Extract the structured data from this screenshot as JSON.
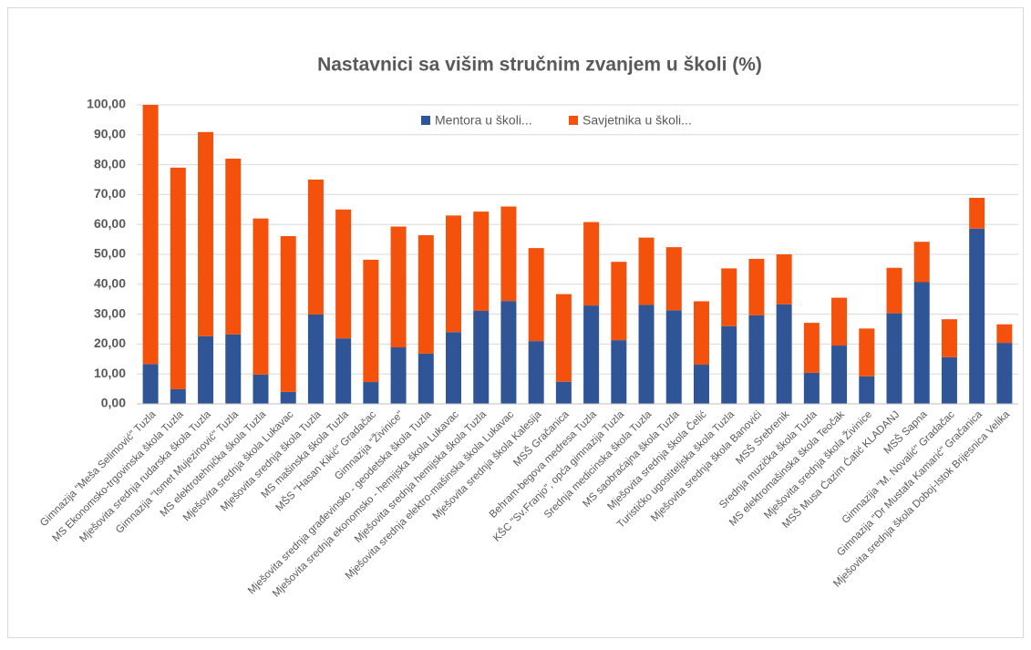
{
  "chart_data": {
    "type": "stacked_bar",
    "title": "Nastavnici sa višim stručnim zvanjem u školi (%)",
    "categories": [
      "Gimnazija \"Meša Selimović\" Tuzla",
      "MS Ekonomsko-trgovinska škola Tuzla",
      "Mješovita srednja rudarska škola Tuzla",
      "Gimnazija \"Ismet Mujezinović\" Tuzla",
      "MS elektrotehnička škola Tuzla",
      "Mješovita srednja škola Lukavac",
      "Mješovita srednja škola Tuzla",
      "MS mašinska škola Tuzla",
      "MŠS \"Hasan Kikić\" Gradačac",
      "Gimnazija \"Živinice\"",
      "Mješovita srednja građevinsko - geodetska škola Tuzla",
      "Mješovita srednja ekonomsko - hemijska škola Lukavac",
      "Mješovita srednja hemijska škola Tuzla",
      "Mješovita srednja elektro-mašinska škola Lukavac",
      "Mješovita srednja škola Kalesija",
      "MSŠ Gračanica",
      "Behram-begova medresa Tuzla",
      "KŠC \"Sv.Franjo\", opća gimnazija Tuzla",
      "Srednja medicinska škola Tuzla",
      "MS saobraćajna škola Tuzla",
      "Mješovita srednja škola Čelić",
      "Turističko ugostiteljska škola Tuzla",
      "Mješovita srednja škola Banovići",
      "MSŠ Srebrenik",
      "Srednja muzička škola Tuzla",
      "MS elektromašinska škola Teočak",
      "Mješovita srednja škola Živinice",
      "MSŠ Musa Ćazim Ćatić KLADANJ",
      "MSŠ Sapna",
      "Gimnazija \"M. Novalić\" Gradačac",
      "Gimnazija \"Dr Mustafa Kamarić\" Gračanica",
      "Mješovita srednja škola Doboj-Istok Brijesnica Velika"
    ],
    "series": [
      {
        "name": "Mentora u školi...",
        "color": "#2f5597",
        "values": [
          13.3,
          4.9,
          22.6,
          23.2,
          9.8,
          4.0,
          29.9,
          21.9,
          7.3,
          18.9,
          16.8,
          24.0,
          31.1,
          34.4,
          21.0,
          7.4,
          32.9,
          21.3,
          33.1,
          31.3,
          13.1,
          26.0,
          29.6,
          33.3,
          10.4,
          19.5,
          9.2,
          30.3,
          40.7,
          15.6,
          58.6,
          20.4
        ]
      },
      {
        "name": "Savjetnika u školi...",
        "color": "#f4520c",
        "values": [
          86.7,
          74.1,
          68.3,
          58.8,
          52.2,
          52.1,
          45.1,
          43.1,
          40.9,
          40.4,
          39.6,
          39.0,
          33.2,
          31.6,
          31.1,
          29.3,
          27.9,
          26.2,
          22.5,
          21.1,
          21.2,
          19.3,
          18.9,
          16.7,
          16.7,
          16.0,
          16.0,
          15.2,
          13.5,
          12.7,
          10.3,
          6.2
        ]
      }
    ],
    "ylim": [
      0,
      100
    ],
    "yticks": [
      {
        "value": 0,
        "label": "0,00"
      },
      {
        "value": 10,
        "label": "10,00"
      },
      {
        "value": 20,
        "label": "20,00"
      },
      {
        "value": 30,
        "label": "30,00"
      },
      {
        "value": 40,
        "label": "40,00"
      },
      {
        "value": 50,
        "label": "50,00"
      },
      {
        "value": 60,
        "label": "60,00"
      },
      {
        "value": 70,
        "label": "70,00"
      },
      {
        "value": 80,
        "label": "80,00"
      },
      {
        "value": 90,
        "label": "90,00"
      },
      {
        "value": 100,
        "label": "100,00"
      }
    ],
    "grid": true,
    "legend": "top"
  }
}
